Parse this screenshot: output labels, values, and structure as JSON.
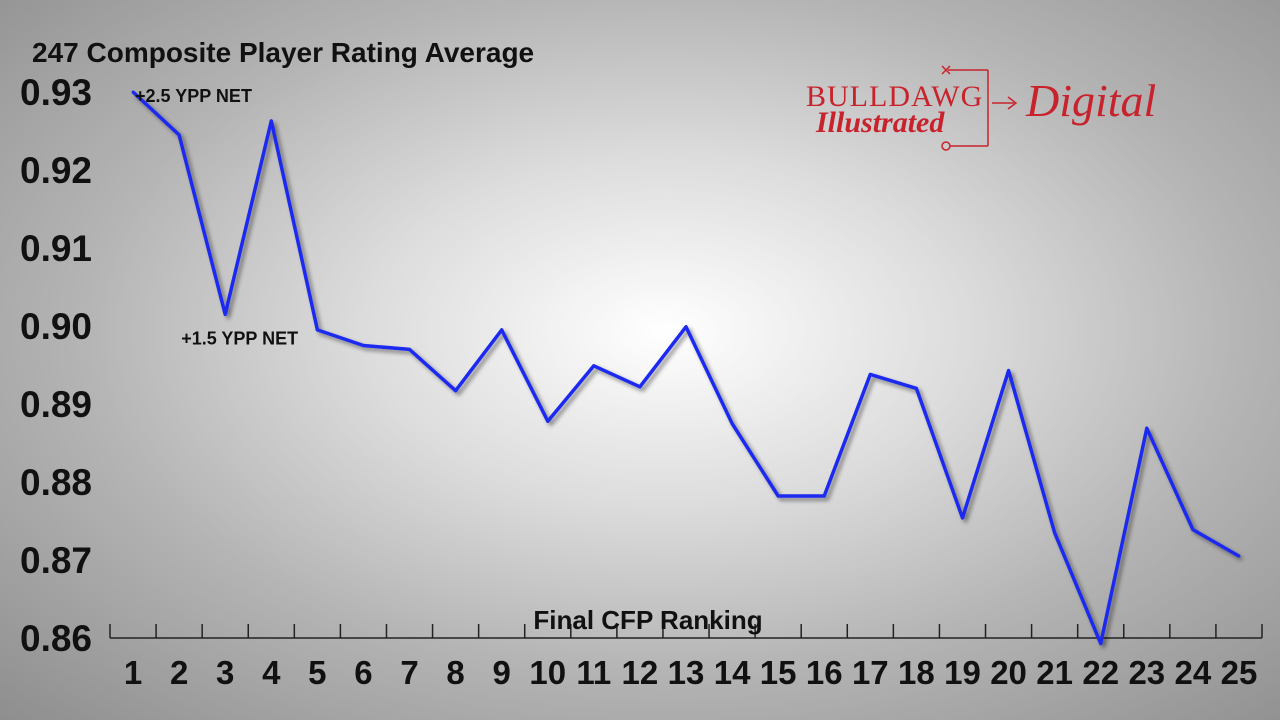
{
  "chart_data": {
    "type": "line",
    "title": "247 Composite Player Rating Average",
    "xlabel": "Final CFP Ranking",
    "ylabel": "",
    "categories": [
      "1",
      "2",
      "3",
      "4",
      "5",
      "6",
      "7",
      "8",
      "9",
      "10",
      "11",
      "12",
      "13",
      "14",
      "15",
      "16",
      "17",
      "18",
      "19",
      "20",
      "21",
      "22",
      "23",
      "24",
      "25"
    ],
    "y_ticks": [
      "0.93",
      "0.92",
      "0.91",
      "0.90",
      "0.89",
      "0.88",
      "0.87",
      "0.86"
    ],
    "ylim": [
      0.86,
      0.93
    ],
    "grid": false,
    "series": [
      {
        "values": [
          0.93,
          0.9245,
          0.9015,
          0.9263,
          0.8995,
          0.8975,
          0.897,
          0.8917,
          0.8995,
          0.8878,
          0.8949,
          0.8922,
          0.8999,
          0.8875,
          0.8782,
          0.8782,
          0.8938,
          0.892,
          0.8754,
          0.8943,
          0.8735,
          0.8593,
          0.8869,
          0.8739,
          0.8705
        ],
        "color": "#1e2cf0"
      }
    ],
    "annotations": [
      {
        "text": "+2.5 YPP NET",
        "category": "1"
      },
      {
        "text": "+1.5 YPP NET",
        "category": "3"
      }
    ]
  },
  "logo": {
    "brand": "BULLDAWG",
    "script": "Illustrated",
    "product": "Digital",
    "color": "#c8232c"
  }
}
